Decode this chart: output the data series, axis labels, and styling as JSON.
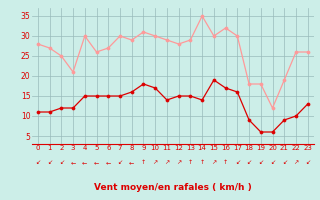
{
  "x": [
    0,
    1,
    2,
    3,
    4,
    5,
    6,
    7,
    8,
    9,
    10,
    11,
    12,
    13,
    14,
    15,
    16,
    17,
    18,
    19,
    20,
    21,
    22,
    23
  ],
  "rafales": [
    28,
    27,
    25,
    21,
    30,
    26,
    27,
    30,
    29,
    31,
    30,
    29,
    28,
    29,
    35,
    30,
    32,
    30,
    18,
    18,
    12,
    19,
    26,
    26
  ],
  "moyen": [
    11,
    11,
    12,
    12,
    15,
    15,
    15,
    15,
    16,
    18,
    17,
    14,
    15,
    15,
    14,
    19,
    17,
    16,
    9,
    6,
    6,
    9,
    10,
    13
  ],
  "bg_color": "#cceee8",
  "grid_color": "#99bbbb",
  "line_color_rafales": "#ff9999",
  "line_color_moyen": "#dd0000",
  "xlabel": "Vent moyen/en rafales ( km/h )",
  "xlim": [
    -0.5,
    23.5
  ],
  "ylim": [
    3,
    37
  ],
  "yticks": [
    5,
    10,
    15,
    20,
    25,
    30,
    35
  ],
  "xticks": [
    0,
    1,
    2,
    3,
    4,
    5,
    6,
    7,
    8,
    9,
    10,
    11,
    12,
    13,
    14,
    15,
    16,
    17,
    18,
    19,
    20,
    21,
    22,
    23
  ],
  "wind_syms": [
    "↙",
    "↙",
    "↙",
    "←",
    "←",
    "←",
    "←",
    "↙",
    "←",
    "↑",
    "↗",
    "↗",
    "↗",
    "↑",
    "↑",
    "↗",
    "↑",
    "↙",
    "↙",
    "↙",
    "↙",
    "↙",
    "↗",
    "↙"
  ]
}
